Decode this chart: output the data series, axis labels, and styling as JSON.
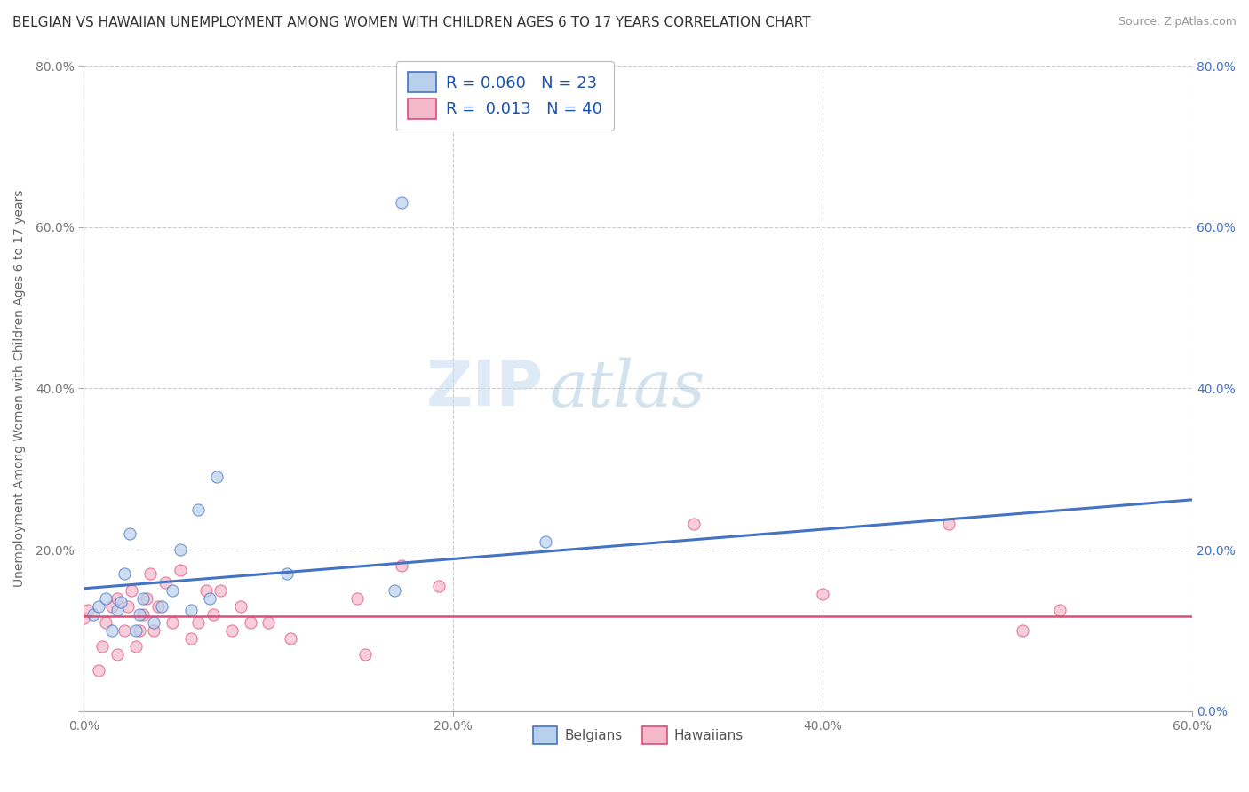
{
  "title": "BELGIAN VS HAWAIIAN UNEMPLOYMENT AMONG WOMEN WITH CHILDREN AGES 6 TO 17 YEARS CORRELATION CHART",
  "source": "Source: ZipAtlas.com",
  "ylabel": "Unemployment Among Women with Children Ages 6 to 17 years",
  "xlabel": "",
  "xlim": [
    0.0,
    0.6
  ],
  "ylim": [
    0.0,
    0.8
  ],
  "ytick_labels_left": [
    "",
    "20.0%",
    "40.0%",
    "60.0%",
    "80.0%"
  ],
  "ytick_labels_right": [
    "0.0%",
    "20.0%",
    "40.0%",
    "60.0%",
    "80.0%"
  ],
  "ytick_values": [
    0.0,
    0.2,
    0.4,
    0.6,
    0.8
  ],
  "xtick_labels": [
    "0.0%",
    "",
    "20.0%",
    "",
    "40.0%",
    "",
    "60.0%"
  ],
  "xtick_values": [
    0.0,
    0.1,
    0.2,
    0.3,
    0.4,
    0.5,
    0.6
  ],
  "xtick_display": [
    "0.0%",
    "20.0%",
    "40.0%",
    "60.0%"
  ],
  "xtick_display_vals": [
    0.0,
    0.2,
    0.4,
    0.6
  ],
  "belgian_color": "#b8d0eb",
  "hawaiian_color": "#f5b8ca",
  "belgian_line_color": "#4472c4",
  "hawaiian_line_color": "#d94f7a",
  "legend_R_belgian": "R = 0.060",
  "legend_N_belgian": "N = 23",
  "legend_R_hawaiian": "R =  0.013",
  "legend_N_hawaiian": "N = 40",
  "watermark_zip": "ZIP",
  "watermark_atlas": "atlas",
  "belgian_x": [
    0.005,
    0.008,
    0.012,
    0.015,
    0.018,
    0.02,
    0.022,
    0.025,
    0.028,
    0.03,
    0.032,
    0.038,
    0.042,
    0.048,
    0.052,
    0.058,
    0.062,
    0.068,
    0.072,
    0.11,
    0.168,
    0.172,
    0.25
  ],
  "belgian_y": [
    0.12,
    0.13,
    0.14,
    0.1,
    0.125,
    0.135,
    0.17,
    0.22,
    0.1,
    0.12,
    0.14,
    0.11,
    0.13,
    0.15,
    0.2,
    0.125,
    0.25,
    0.14,
    0.29,
    0.17,
    0.15,
    0.63,
    0.21
  ],
  "hawaiian_x": [
    0.0,
    0.002,
    0.008,
    0.01,
    0.012,
    0.015,
    0.018,
    0.018,
    0.022,
    0.024,
    0.026,
    0.028,
    0.03,
    0.032,
    0.034,
    0.036,
    0.038,
    0.04,
    0.044,
    0.048,
    0.052,
    0.058,
    0.062,
    0.066,
    0.07,
    0.074,
    0.08,
    0.085,
    0.09,
    0.1,
    0.112,
    0.148,
    0.152,
    0.172,
    0.192,
    0.33,
    0.4,
    0.468,
    0.508,
    0.528
  ],
  "hawaiian_y": [
    0.115,
    0.125,
    0.05,
    0.08,
    0.11,
    0.13,
    0.07,
    0.14,
    0.1,
    0.13,
    0.15,
    0.08,
    0.1,
    0.12,
    0.14,
    0.17,
    0.1,
    0.13,
    0.16,
    0.11,
    0.175,
    0.09,
    0.11,
    0.15,
    0.12,
    0.15,
    0.1,
    0.13,
    0.11,
    0.11,
    0.09,
    0.14,
    0.07,
    0.18,
    0.155,
    0.232,
    0.145,
    0.232,
    0.1,
    0.125
  ],
  "belgian_trend_x": [
    0.0,
    0.6
  ],
  "belgian_trend_y": [
    0.152,
    0.262
  ],
  "hawaiian_trend_x": [
    0.0,
    0.6
  ],
  "hawaiian_trend_y": [
    0.118,
    0.118
  ],
  "background_color": "#ffffff",
  "grid_color": "#cccccc",
  "title_fontsize": 11,
  "axis_label_fontsize": 10,
  "tick_fontsize": 10,
  "legend_fontsize": 13,
  "marker_size": 90
}
